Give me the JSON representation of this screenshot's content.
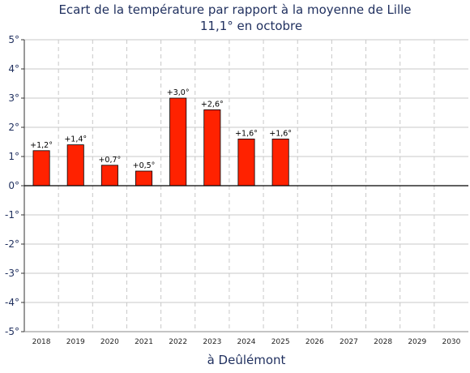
{
  "chart_data": {
    "type": "bar",
    "title": "Ecart de la température par rapport à la moyenne de Lille",
    "subtitle": "11,1° en octobre",
    "xlabel": "à Deûlémont",
    "categories": [
      "2018",
      "2019",
      "2020",
      "2021",
      "2022",
      "2023",
      "2024",
      "2025",
      "2026",
      "2027",
      "2028",
      "2029",
      "2030"
    ],
    "values": [
      1.2,
      1.4,
      0.7,
      0.5,
      3.0,
      2.6,
      1.6,
      1.6,
      null,
      null,
      null,
      null,
      null
    ],
    "data_labels": [
      "+1,2°",
      "+1,4°",
      "+0,7°",
      "+0,5°",
      "+3,0°",
      "+2,6°",
      "+1,6°",
      "+1,6°",
      "",
      "",
      "",
      "",
      ""
    ],
    "yticks": [
      5,
      4,
      3,
      2,
      1,
      0,
      -1,
      -2,
      -3,
      -4,
      -5
    ],
    "ytick_labels": [
      "5°",
      "4°",
      "3°",
      "2°",
      "1°",
      "0°",
      "-1°",
      "-2°",
      "-3°",
      "-4°",
      "-5°"
    ],
    "ylim": [
      -5,
      5
    ],
    "grid": true,
    "colors": {
      "bar": "#ff2200",
      "bar_edge": "#000000",
      "grid": "#c8c8c8",
      "text": "#1f2f5e"
    }
  }
}
